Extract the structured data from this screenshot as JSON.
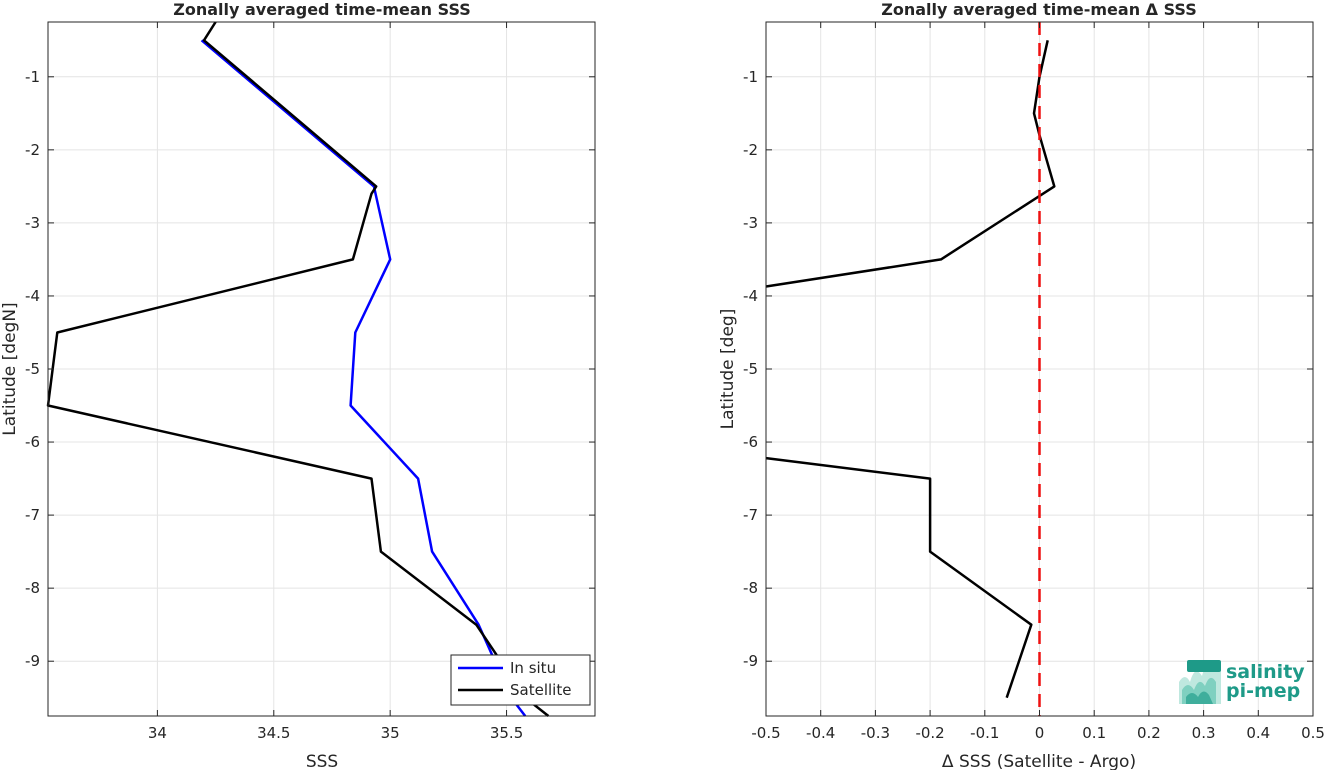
{
  "chart_data": [
    {
      "type": "line",
      "title": "Zonally averaged time-mean SSS",
      "xlabel": "SSS",
      "ylabel": "Latitude [degN]",
      "xlim": [
        33.53,
        35.88
      ],
      "ylim": [
        -9.75,
        -0.25
      ],
      "xticks": [
        34,
        34.5,
        35,
        35.5
      ],
      "xtick_labels": [
        "34",
        "34.5",
        "35",
        "35.5"
      ],
      "yticks": [
        -1,
        -2,
        -3,
        -4,
        -5,
        -6,
        -7,
        -8,
        -9
      ],
      "ytick_labels": [
        "-1",
        "-2",
        "-3",
        "-4",
        "-5",
        "-6",
        "-7",
        "-8",
        "-9"
      ],
      "grid": true,
      "legend_location": "bottom-right",
      "series": [
        {
          "name": "In situ",
          "color": "#0000ff",
          "points": [
            [
              34.19,
              -0.5
            ],
            [
              34.93,
              -2.5
            ],
            [
              35.0,
              -3.5
            ],
            [
              34.85,
              -4.5
            ],
            [
              34.83,
              -5.5
            ],
            [
              35.12,
              -6.5
            ],
            [
              35.18,
              -7.5
            ],
            [
              35.38,
              -8.5
            ],
            [
              35.52,
              -9.5
            ],
            [
              35.58,
              -9.75
            ]
          ]
        },
        {
          "name": "Satellite",
          "color": "#000000",
          "points": [
            [
              34.25,
              -0.25
            ],
            [
              34.2,
              -0.5
            ],
            [
              34.94,
              -2.5
            ],
            [
              34.92,
              -2.6
            ],
            [
              34.84,
              -3.5
            ],
            [
              33.57,
              -4.5
            ],
            [
              33.53,
              -5.5
            ],
            [
              34.92,
              -6.5
            ],
            [
              34.96,
              -7.5
            ],
            [
              35.37,
              -8.5
            ],
            [
              35.58,
              -9.5
            ],
            [
              35.68,
              -9.75
            ]
          ]
        }
      ]
    },
    {
      "type": "line",
      "title": "Zonally averaged time-mean Δ SSS",
      "xlabel": "Δ SSS (Satellite - Argo)",
      "ylabel": "Latitude [deg]",
      "xlim": [
        -0.5,
        0.5
      ],
      "ylim": [
        -9.75,
        -0.25
      ],
      "xticks": [
        -0.5,
        -0.4,
        -0.3,
        -0.2,
        -0.1,
        0,
        0.1,
        0.2,
        0.3,
        0.4,
        0.5
      ],
      "xtick_labels": [
        "-0.5",
        "-0.4",
        "-0.3",
        "-0.2",
        "-0.1",
        "0",
        "0.1",
        "0.2",
        "0.3",
        "0.4",
        "0.5"
      ],
      "yticks": [
        -1,
        -2,
        -3,
        -4,
        -5,
        -6,
        -7,
        -8,
        -9
      ],
      "ytick_labels": [
        "-1",
        "-2",
        "-3",
        "-4",
        "-5",
        "-6",
        "-7",
        "-8",
        "-9"
      ],
      "grid": true,
      "reference_line": {
        "x": 0,
        "color": "#ee1111",
        "style": "dashed"
      },
      "series": [
        {
          "color": "#000000",
          "points": [
            [
              0.015,
              -0.5
            ],
            [
              0.0,
              -1.0
            ],
            [
              -0.01,
              -1.5
            ],
            [
              0.0,
              -1.8
            ],
            [
              0.027,
              -2.5
            ],
            [
              -0.18,
              -3.5
            ],
            [
              -0.5,
              -3.87
            ]
          ]
        },
        {
          "color": "#000000",
          "points": [
            [
              -0.5,
              -6.22
            ],
            [
              -0.2,
              -6.5
            ],
            [
              -0.2,
              -7.5
            ],
            [
              -0.015,
              -8.5
            ],
            [
              -0.06,
              -9.5
            ]
          ]
        }
      ]
    }
  ],
  "logo": {
    "line1": "salinity",
    "line2": "pi-mep",
    "color": "#1e9a88"
  }
}
